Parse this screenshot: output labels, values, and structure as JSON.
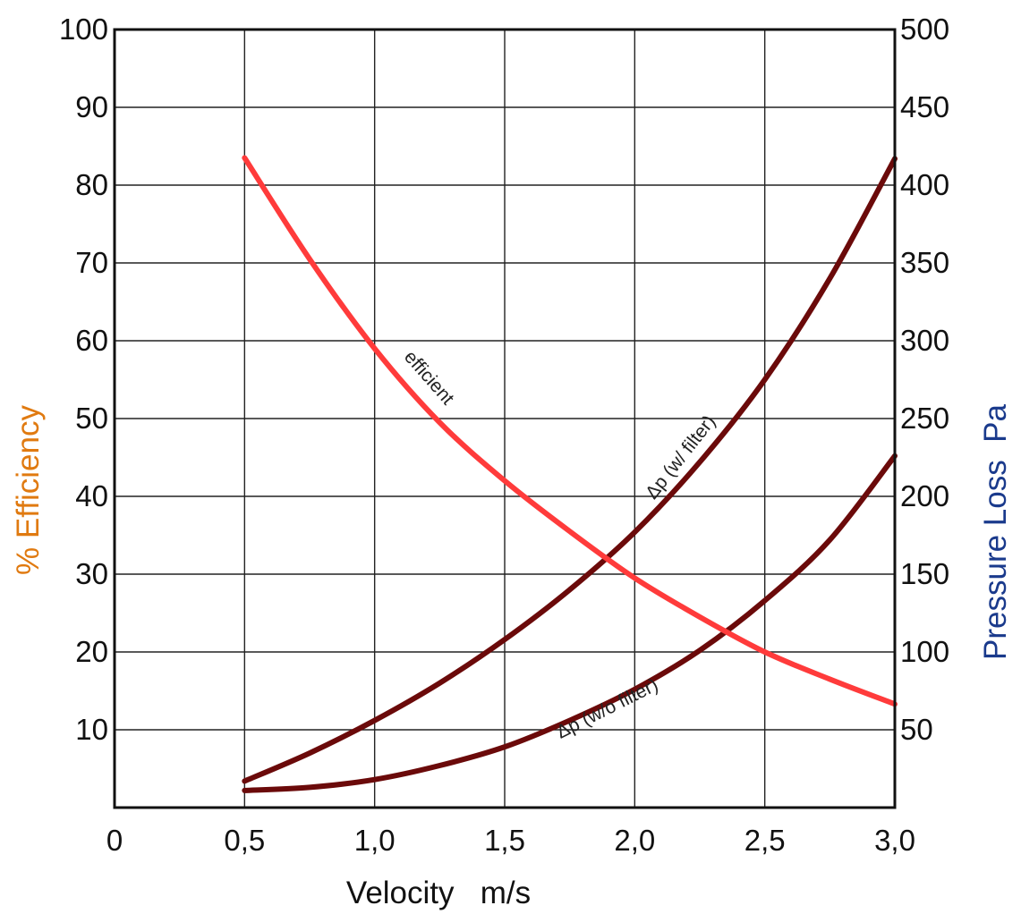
{
  "chart_data": {
    "type": "line",
    "x_axis": {
      "label": "Velocity   m/s",
      "range": [
        0,
        3.0
      ],
      "ticks": [
        0,
        0.5,
        1.0,
        1.5,
        2.0,
        2.5,
        3.0
      ],
      "tick_labels": [
        "0",
        "0,5",
        "1,0",
        "1,5",
        "2,0",
        "2,5",
        "3,0"
      ]
    },
    "y_axis_left": {
      "label": "% Efficiency",
      "range": [
        0,
        100
      ],
      "ticks": [
        10,
        20,
        30,
        40,
        50,
        60,
        70,
        80,
        90,
        100
      ],
      "tick_labels": [
        "10",
        "20",
        "30",
        "40",
        "50",
        "60",
        "70",
        "80",
        "90",
        "100"
      ],
      "label_color": "#e07a10"
    },
    "y_axis_right": {
      "label": "Pressure Loss  Pa",
      "range": [
        0,
        500
      ],
      "ticks": [
        50,
        100,
        150,
        200,
        250,
        300,
        350,
        400,
        450,
        500
      ],
      "tick_labels": [
        "50",
        "100",
        "150",
        "200",
        "250",
        "300",
        "350",
        "400",
        "450",
        "500"
      ],
      "label_color": "#1a3a8c"
    },
    "grid": true,
    "series": [
      {
        "name": "efficient",
        "axis": "left",
        "color": "#ff3b3b",
        "x": [
          0.5,
          0.75,
          1.0,
          1.25,
          1.5,
          1.75,
          2.0,
          2.25,
          2.5,
          2.75,
          3.0
        ],
        "y": [
          83.5,
          70.5,
          59.0,
          49.5,
          42.0,
          35.5,
          29.5,
          24.5,
          20.0,
          16.5,
          13.3
        ]
      },
      {
        "name": "Δp (w/ filter)",
        "axis": "right",
        "color": "#6b0a0a",
        "x": [
          0.5,
          0.75,
          1.0,
          1.25,
          1.5,
          1.75,
          2.0,
          2.25,
          2.5,
          2.75,
          3.0
        ],
        "y": [
          17,
          35,
          56,
          80,
          108,
          140,
          177,
          222,
          275,
          340,
          417
        ]
      },
      {
        "name": "Δp (w/o filter)",
        "axis": "right",
        "color": "#6b0a0a",
        "x": [
          0.5,
          0.75,
          1.0,
          1.25,
          1.5,
          1.75,
          2.0,
          2.25,
          2.5,
          2.75,
          3.0
        ],
        "y": [
          11,
          13,
          18,
          27,
          39,
          56,
          76,
          101,
          133,
          172,
          226
        ]
      }
    ],
    "annotations": [
      {
        "text": "efficient",
        "series": 0
      },
      {
        "text": "Δp (w/ filter)",
        "series": 1
      },
      {
        "text": "Δp (w/o filter)",
        "series": 2
      }
    ]
  }
}
